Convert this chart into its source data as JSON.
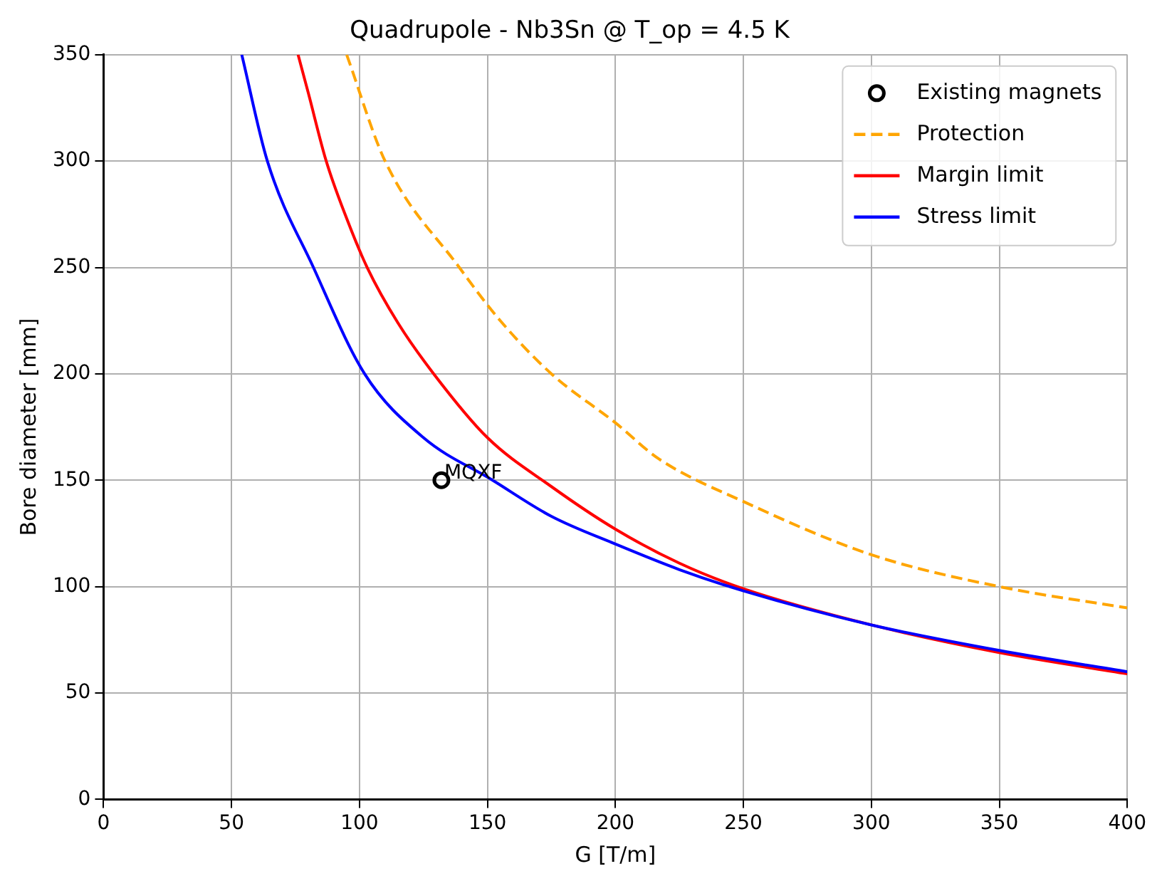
{
  "chart_data": {
    "type": "line",
    "title": "Quadrupole - Nb3Sn @ T_op = 4.5 K",
    "xlabel": "G [T/m]",
    "ylabel": "Bore diameter [mm]",
    "xlim": [
      0,
      400
    ],
    "xticks": [
      0,
      50,
      100,
      150,
      200,
      250,
      300,
      350,
      400
    ],
    "ylim": [
      0,
      350
    ],
    "yticks": [
      0,
      50,
      100,
      150,
      200,
      250,
      300,
      350
    ],
    "grid": true,
    "legend": "top right",
    "series": [
      {
        "name": "Existing magnets",
        "type": "scatter",
        "marker": "circle",
        "color": "#000000",
        "x": [
          132
        ],
        "values": [
          150
        ]
      },
      {
        "name": "Protection",
        "line_style": "dashed",
        "color": "#ffa500",
        "x": [
          95,
          110,
          139,
          155,
          175,
          200,
          217,
          250,
          300,
          350,
          400
        ],
        "values": [
          350,
          300,
          250,
          225,
          200,
          177,
          160,
          140,
          115,
          100,
          90
        ]
      },
      {
        "name": "Margin limit",
        "line_style": "solid",
        "color": "#ff0000",
        "x": [
          76,
          80,
          87,
          95,
          103,
          115,
          129,
          150,
          175,
          200,
          225,
          250,
          300,
          350,
          400
        ],
        "values": [
          350,
          332,
          300,
          273,
          250,
          224,
          200,
          170,
          147,
          127,
          111,
          99,
          82,
          69,
          59
        ]
      },
      {
        "name": "Stress limit",
        "line_style": "solid",
        "color": "#0000ff",
        "x": [
          54,
          64,
          82,
          102,
          125,
          152,
          175,
          200,
          225,
          250,
          300,
          350,
          400
        ],
        "values": [
          350,
          300,
          250,
          200,
          170,
          150,
          133,
          120,
          108,
          98,
          82,
          70,
          60
        ]
      }
    ],
    "annotations": [
      {
        "text": "MQXF",
        "x": 132,
        "y": 150
      }
    ]
  }
}
